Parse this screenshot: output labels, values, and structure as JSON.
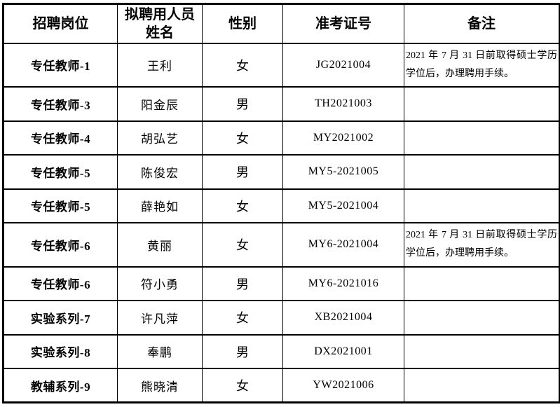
{
  "page": {
    "background": "#ffffff",
    "border_color": "#000000",
    "text_color": "#000000"
  },
  "table": {
    "columns": [
      {
        "key": "position",
        "label": "招聘岗位"
      },
      {
        "key": "name",
        "label": "拟聘用人员姓名"
      },
      {
        "key": "gender",
        "label": "性别"
      },
      {
        "key": "ticket",
        "label": "准考证号"
      },
      {
        "key": "remark",
        "label": "备注"
      }
    ],
    "rows": [
      {
        "position": "专任教师-1",
        "name": "王利",
        "gender": "女",
        "ticket": "JG2021004",
        "remark": "2021 年 7 月 31 日前取得硕士学历学位后，办理聘用手续。"
      },
      {
        "position": "专任教师-3",
        "name": "阳金辰",
        "gender": "男",
        "ticket": "TH2021003",
        "remark": ""
      },
      {
        "position": "专任教师-4",
        "name": "胡弘艺",
        "gender": "女",
        "ticket": "MY2021002",
        "remark": ""
      },
      {
        "position": "专任教师-5",
        "name": "陈俊宏",
        "gender": "男",
        "ticket": "MY5-2021005",
        "remark": ""
      },
      {
        "position": "专任教师-5",
        "name": "薛艳如",
        "gender": "女",
        "ticket": "MY5-2021004",
        "remark": ""
      },
      {
        "position": "专任教师-6",
        "name": "黄丽",
        "gender": "女",
        "ticket": "MY6-2021004",
        "remark": "2021 年 7 月 31 日前取得硕士学历学位后，办理聘用手续。"
      },
      {
        "position": "专任教师-6",
        "name": "符小勇",
        "gender": "男",
        "ticket": "MY6-2021016",
        "remark": ""
      },
      {
        "position": "实验系列-7",
        "name": "许凡萍",
        "gender": "女",
        "ticket": "XB2021004",
        "remark": ""
      },
      {
        "position": "实验系列-8",
        "name": "奉鹏",
        "gender": "男",
        "ticket": "DX2021001",
        "remark": ""
      },
      {
        "position": "教辅系列-9",
        "name": "熊晓清",
        "gender": "女",
        "ticket": "YW2021006",
        "remark": ""
      }
    ]
  }
}
